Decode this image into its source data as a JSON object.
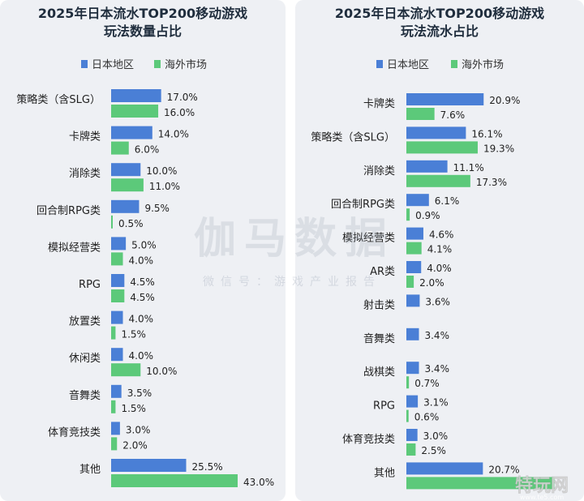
{
  "chart_data": [
    {
      "type": "bar",
      "orientation": "horizontal",
      "title_lines": [
        "2025年日本流水TOP200移动游戏",
        "玩法数量占比"
      ],
      "legend": {
        "placement": "top",
        "entries": [
          {
            "name": "日本地区",
            "color": "#4a7fd6"
          },
          {
            "name": "海外市场",
            "color": "#5cc97a"
          }
        ]
      },
      "categories": [
        "策略类（含SLG）",
        "卡牌类",
        "消除类",
        "回合制RPG类",
        "模拟经营类",
        "RPG",
        "放置类",
        "休闲类",
        "音舞类",
        "体育竞技类",
        "其他"
      ],
      "series": [
        {
          "name": "日本地区",
          "values": [
            17.0,
            14.0,
            10.0,
            9.5,
            5.0,
            4.5,
            4.0,
            4.0,
            3.5,
            3.0,
            25.5
          ],
          "labels": [
            "17.0%",
            "14.0%",
            "10.0%",
            "9.5%",
            "5.0%",
            "4.5%",
            "4.0%",
            "4.0%",
            "3.5%",
            "3.0%",
            "25.5%"
          ]
        },
        {
          "name": "海外市场",
          "values": [
            16.0,
            6.0,
            11.0,
            0.5,
            4.0,
            4.5,
            1.5,
            10.0,
            1.5,
            2.0,
            43.0
          ],
          "labels": [
            "16.0%",
            "6.0%",
            "11.0%",
            "0.5%",
            "4.0%",
            "4.5%",
            "1.5%",
            "10.0%",
            "1.5%",
            "2.0%",
            "43.0%"
          ]
        }
      ],
      "xlim": [
        0,
        43
      ],
      "grid": false
    },
    {
      "type": "bar",
      "orientation": "horizontal",
      "title_lines": [
        "2025年日本流水TOP200移动游戏",
        "玩法流水占比"
      ],
      "legend": {
        "placement": "top",
        "entries": [
          {
            "name": "日本地区",
            "color": "#4a7fd6"
          },
          {
            "name": "海外市场",
            "color": "#5cc97a"
          }
        ]
      },
      "categories": [
        "卡牌类",
        "策略类（含SLG）",
        "消除类",
        "回合制RPG类",
        "模拟经营类",
        "AR类",
        "射击类",
        "音舞类",
        "战棋类",
        "RPG",
        "体育竞技类",
        "其他"
      ],
      "series": [
        {
          "name": "日本地区",
          "values": [
            20.9,
            16.1,
            11.1,
            6.1,
            4.6,
            4.0,
            3.6,
            3.4,
            3.4,
            3.1,
            3.0,
            20.7
          ],
          "labels": [
            "20.9%",
            "16.1%",
            "11.1%",
            "6.1%",
            "4.6%",
            "4.0%",
            "3.6%",
            "3.4%",
            "3.4%",
            "3.1%",
            "3.0%",
            "20.7%"
          ]
        },
        {
          "name": "海外市场",
          "values": [
            7.6,
            19.3,
            17.3,
            0.9,
            4.1,
            2.0,
            null,
            null,
            0.7,
            0.6,
            2.5,
            40.0
          ],
          "labels": [
            "7.6%",
            "19.3%",
            "17.3%",
            "0.9%",
            "4.1%",
            "2.0%",
            "",
            "",
            "0.7%",
            "0.6%",
            "2.5%",
            ""
          ]
        }
      ],
      "xlim": [
        0,
        43
      ],
      "grid": false
    }
  ],
  "watermark": {
    "main": "伽马数据",
    "sub": "微信号：游戏产业报告",
    "corner": "特玩网",
    "corner_url": "www.te5.com"
  }
}
